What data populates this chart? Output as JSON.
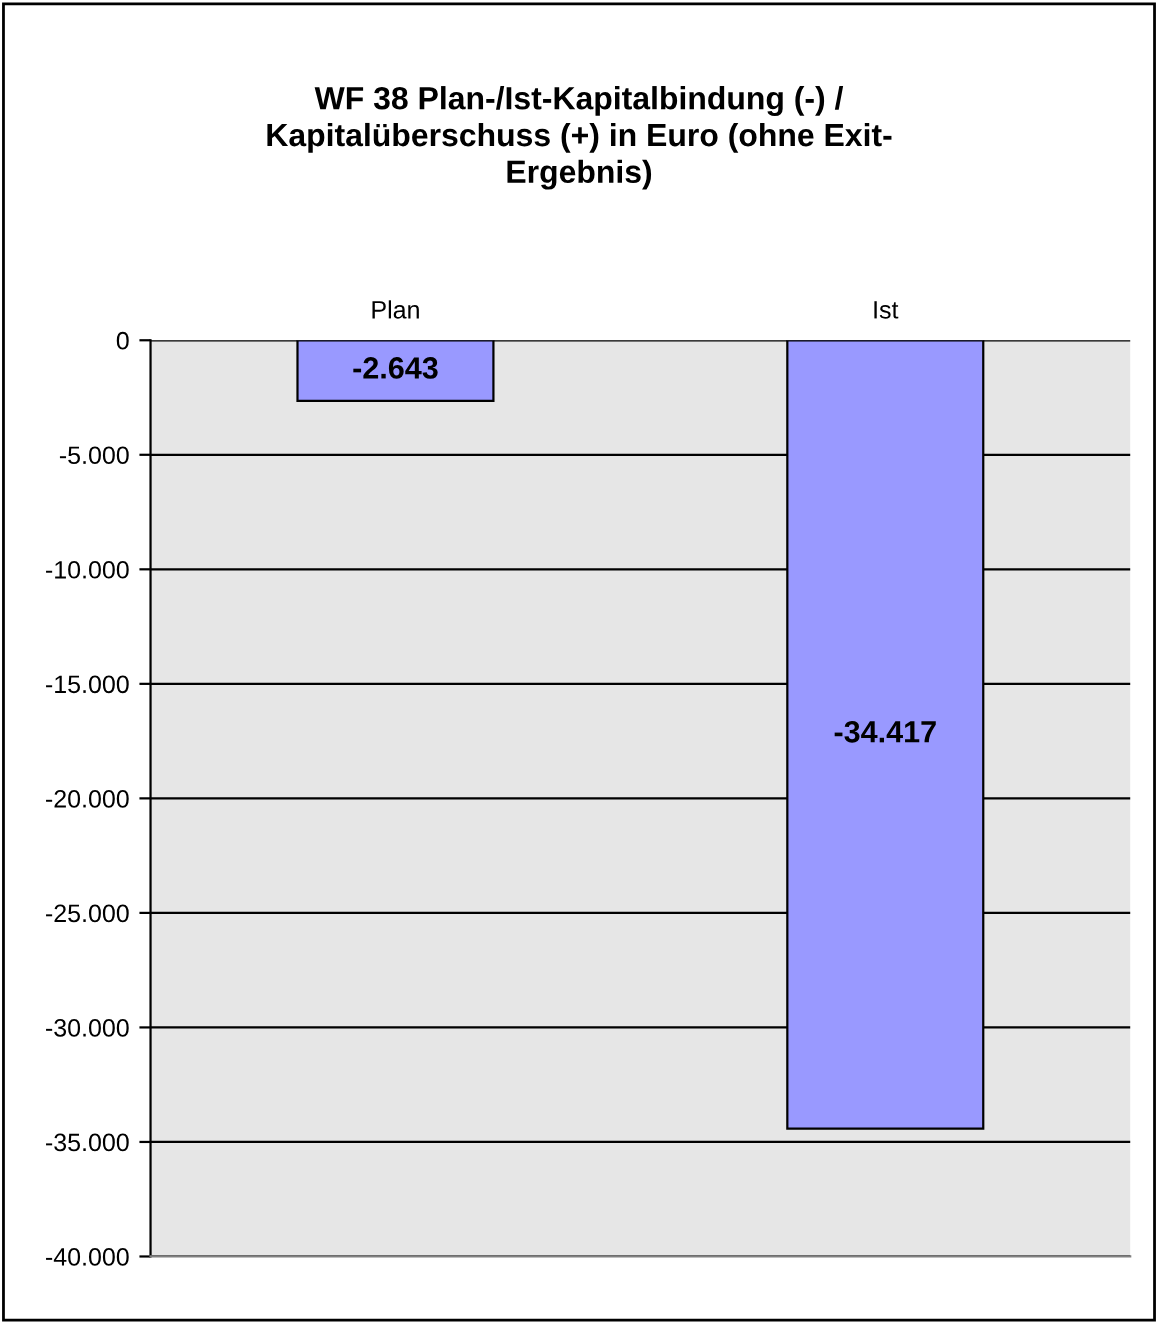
{
  "chart_data": {
    "type": "bar",
    "title": "WF 38 Plan-/Ist-Kapitalbindung (-) /\nKapitalüberschuss (+) in Euro (ohne Exit-\nErgebnis)",
    "categories": [
      "Plan",
      "Ist"
    ],
    "values": [
      -2643,
      -34417
    ],
    "color": "#9999ff",
    "value_labels": [
      "-2.643",
      "-34.417"
    ],
    "ylim": [
      -40000,
      0
    ],
    "yticks": [
      {
        "value": 0,
        "label": "0"
      },
      {
        "value": -5000,
        "label": "-5.000"
      },
      {
        "value": -10000,
        "label": "-10.000"
      },
      {
        "value": -15000,
        "label": "-15.000"
      },
      {
        "value": -20000,
        "label": "-20.000"
      },
      {
        "value": -25000,
        "label": "-25.000"
      },
      {
        "value": -30000,
        "label": "-30.000"
      },
      {
        "value": -35000,
        "label": "-35.000"
      },
      {
        "value": -40000,
        "label": "-40.000"
      }
    ],
    "grid": "y",
    "legend": false
  }
}
